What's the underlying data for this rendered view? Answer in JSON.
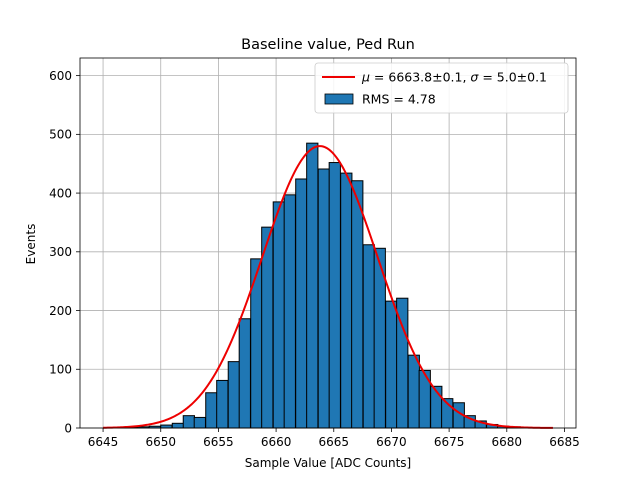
{
  "chart_data": {
    "type": "bar",
    "title": "Baseline value, Ped Run",
    "xlabel": "Sample Value [ADC Counts]",
    "ylabel": "Events",
    "xlim": [
      6643,
      6686
    ],
    "ylim": [
      0,
      630
    ],
    "xticks": [
      6645,
      6650,
      6655,
      6660,
      6665,
      6670,
      6675,
      6680,
      6685
    ],
    "yticks": [
      0,
      100,
      200,
      300,
      400,
      500,
      600
    ],
    "grid": true,
    "legend_position": "top-right",
    "bin_width": 0.975,
    "bins": [
      {
        "x": 6645.0,
        "count": 0
      },
      {
        "x": 6646.0,
        "count": 1
      },
      {
        "x": 6647.0,
        "count": 1
      },
      {
        "x": 6648.0,
        "count": 2
      },
      {
        "x": 6649.0,
        "count": 3
      },
      {
        "x": 6650.0,
        "count": 5
      },
      {
        "x": 6651.0,
        "count": 8
      },
      {
        "x": 6651.95,
        "count": 21
      },
      {
        "x": 6652.9,
        "count": 18
      },
      {
        "x": 6653.9,
        "count": 60
      },
      {
        "x": 6654.85,
        "count": 81
      },
      {
        "x": 6655.85,
        "count": 113
      },
      {
        "x": 6656.8,
        "count": 186
      },
      {
        "x": 6657.8,
        "count": 288
      },
      {
        "x": 6658.75,
        "count": 342
      },
      {
        "x": 6659.75,
        "count": 385
      },
      {
        "x": 6660.7,
        "count": 397
      },
      {
        "x": 6661.7,
        "count": 424
      },
      {
        "x": 6662.65,
        "count": 485
      },
      {
        "x": 6663.65,
        "count": 441
      },
      {
        "x": 6664.6,
        "count": 452
      },
      {
        "x": 6665.6,
        "count": 434
      },
      {
        "x": 6666.55,
        "count": 421
      },
      {
        "x": 6667.55,
        "count": 312
      },
      {
        "x": 6668.5,
        "count": 306
      },
      {
        "x": 6669.5,
        "count": 216
      },
      {
        "x": 6670.45,
        "count": 221
      },
      {
        "x": 6671.45,
        "count": 124
      },
      {
        "x": 6672.4,
        "count": 98
      },
      {
        "x": 6673.4,
        "count": 71
      },
      {
        "x": 6674.35,
        "count": 50
      },
      {
        "x": 6675.35,
        "count": 43
      },
      {
        "x": 6676.3,
        "count": 21
      },
      {
        "x": 6677.25,
        "count": 12
      },
      {
        "x": 6678.25,
        "count": 6
      },
      {
        "x": 6679.2,
        "count": 3
      },
      {
        "x": 6680.2,
        "count": 2
      },
      {
        "x": 6681.15,
        "count": 1
      }
    ],
    "fit": {
      "type": "gaussian",
      "mu": 6663.8,
      "sigma": 5.0,
      "amplitude": 480,
      "x_range": [
        6645,
        6684
      ]
    },
    "series_colors": {
      "histogram": "#1f77b4",
      "edge": "#000000",
      "fit": "#ee0000",
      "grid": "#b0b0b0"
    },
    "legend": [
      {
        "key": "fit",
        "prefix": "μ = ",
        "mid": "6663.8±0.1, ",
        "sigma": "σ = ",
        "tail": "5.0±0.1"
      },
      {
        "key": "histogram",
        "label": "RMS = 4.78"
      }
    ]
  }
}
